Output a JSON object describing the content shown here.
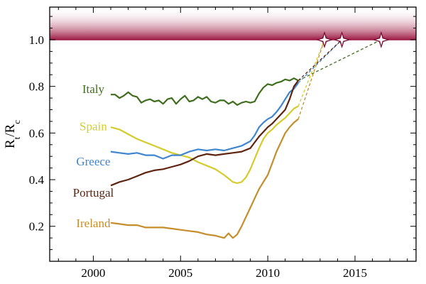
{
  "chart_data": {
    "type": "line",
    "title": "",
    "xlabel": "",
    "ylabel_main": "R",
    "ylabel_sub1": "t",
    "ylabel_sep": "/R",
    "ylabel_sub2": "c",
    "xlim": [
      1997.5,
      2018.5
    ],
    "ylim": [
      0.05,
      1.14
    ],
    "x_ticks": [
      2000,
      2005,
      2010,
      2015
    ],
    "y_ticks": [
      0.2,
      0.4,
      0.6,
      0.8,
      1.0
    ],
    "x_tick_labels": [
      "2000",
      "2005",
      "2010",
      "2015"
    ],
    "y_tick_labels": [
      "0.2",
      "0.4",
      "0.6",
      "0.8",
      "1.0"
    ],
    "grid": false,
    "threshold": {
      "value": 1.0,
      "color": "#9e1b45"
    },
    "series": [
      {
        "name": "Italy",
        "color": "#3f6e1e",
        "x": [
          2001.0,
          2001.25,
          2001.5,
          2001.75,
          2002.0,
          2002.25,
          2002.5,
          2002.75,
          2003.0,
          2003.25,
          2003.5,
          2003.75,
          2004.0,
          2004.25,
          2004.5,
          2004.75,
          2005.0,
          2005.25,
          2005.5,
          2005.75,
          2006.0,
          2006.25,
          2006.5,
          2006.75,
          2007.0,
          2007.25,
          2007.5,
          2007.75,
          2008.0,
          2008.25,
          2008.5,
          2008.75,
          2009.0,
          2009.25,
          2009.5,
          2009.75,
          2010.0,
          2010.25,
          2010.5,
          2010.75,
          2011.0,
          2011.25,
          2011.5,
          2011.75
        ],
        "values": [
          0.765,
          0.765,
          0.75,
          0.76,
          0.775,
          0.76,
          0.755,
          0.73,
          0.74,
          0.745,
          0.735,
          0.74,
          0.725,
          0.745,
          0.75,
          0.725,
          0.745,
          0.76,
          0.735,
          0.74,
          0.755,
          0.745,
          0.755,
          0.735,
          0.73,
          0.74,
          0.74,
          0.725,
          0.735,
          0.72,
          0.73,
          0.735,
          0.73,
          0.735,
          0.77,
          0.795,
          0.81,
          0.805,
          0.815,
          0.82,
          0.83,
          0.825,
          0.835,
          0.825
        ],
        "projection": {
          "x": [
            2011.75,
            2016.5
          ],
          "values": [
            0.825,
            1.0
          ]
        },
        "target_marker": {
          "x": 2016.5,
          "value": 1.0
        }
      },
      {
        "name": "Spain",
        "color": "#d4cc2a",
        "x": [
          2001.0,
          2001.5,
          2002.0,
          2002.5,
          2003.0,
          2003.5,
          2004.0,
          2004.5,
          2005.0,
          2005.5,
          2006.0,
          2006.5,
          2007.0,
          2007.5,
          2008.0,
          2008.25,
          2008.5,
          2008.75,
          2009.0,
          2009.25,
          2009.5,
          2009.75,
          2010.0,
          2010.25,
          2010.5,
          2010.75,
          2011.0,
          2011.25,
          2011.5,
          2011.75
        ],
        "values": [
          0.625,
          0.615,
          0.595,
          0.575,
          0.56,
          0.545,
          0.53,
          0.515,
          0.505,
          0.495,
          0.475,
          0.46,
          0.445,
          0.42,
          0.39,
          0.385,
          0.39,
          0.41,
          0.445,
          0.49,
          0.535,
          0.575,
          0.6,
          0.615,
          0.635,
          0.65,
          0.665,
          0.685,
          0.705,
          0.715
        ],
        "projection": {
          "x": [
            2011.75,
            2013.25
          ],
          "values": [
            0.715,
            1.0
          ]
        },
        "target_marker": {
          "x": 2013.25,
          "value": 1.0
        }
      },
      {
        "name": "Greece",
        "color": "#3f86cf",
        "x": [
          2001.0,
          2001.5,
          2002.0,
          2002.5,
          2003.0,
          2003.5,
          2004.0,
          2004.5,
          2005.0,
          2005.5,
          2006.0,
          2006.5,
          2007.0,
          2007.5,
          2008.0,
          2008.5,
          2009.0,
          2009.25,
          2009.5,
          2009.75,
          2010.0,
          2010.25,
          2010.5,
          2010.75,
          2011.0,
          2011.25,
          2011.5,
          2011.75
        ],
        "values": [
          0.52,
          0.515,
          0.51,
          0.515,
          0.505,
          0.505,
          0.49,
          0.505,
          0.505,
          0.52,
          0.53,
          0.525,
          0.53,
          0.525,
          0.535,
          0.545,
          0.565,
          0.59,
          0.625,
          0.645,
          0.66,
          0.67,
          0.69,
          0.715,
          0.745,
          0.775,
          0.79,
          0.815
        ],
        "projection": {
          "x": [
            2011.75,
            2014.25
          ],
          "values": [
            0.815,
            1.0
          ]
        }
      },
      {
        "name": "Portugal",
        "color": "#5e2410",
        "x": [
          2001.0,
          2001.5,
          2002.0,
          2002.5,
          2003.0,
          2003.5,
          2004.0,
          2004.5,
          2005.0,
          2005.5,
          2006.0,
          2006.5,
          2007.0,
          2007.5,
          2008.0,
          2008.5,
          2009.0,
          2009.25,
          2009.5,
          2009.75,
          2010.0,
          2010.25,
          2010.5,
          2010.75,
          2011.0,
          2011.25,
          2011.5,
          2011.75
        ],
        "values": [
          0.375,
          0.39,
          0.4,
          0.415,
          0.43,
          0.44,
          0.445,
          0.455,
          0.465,
          0.48,
          0.5,
          0.51,
          0.505,
          0.51,
          0.515,
          0.52,
          0.535,
          0.56,
          0.585,
          0.605,
          0.625,
          0.64,
          0.66,
          0.68,
          0.7,
          0.745,
          0.8,
          0.825
        ],
        "projection": {
          "x": [
            2011.75,
            2014.25
          ],
          "values": [
            0.825,
            1.0
          ]
        },
        "target_marker": {
          "x": 2014.25,
          "value": 1.0
        }
      },
      {
        "name": "Ireland",
        "color": "#c68d2c",
        "x": [
          2001.0,
          2001.5,
          2002.0,
          2002.5,
          2003.0,
          2003.5,
          2004.0,
          2004.5,
          2005.0,
          2005.5,
          2006.0,
          2006.5,
          2007.0,
          2007.5,
          2007.75,
          2008.0,
          2008.25,
          2008.5,
          2008.75,
          2009.0,
          2009.25,
          2009.5,
          2009.75,
          2010.0,
          2010.25,
          2010.5,
          2010.75,
          2011.0,
          2011.25,
          2011.5,
          2011.75
        ],
        "values": [
          0.215,
          0.21,
          0.205,
          0.205,
          0.195,
          0.195,
          0.195,
          0.19,
          0.185,
          0.18,
          0.175,
          0.165,
          0.16,
          0.15,
          0.17,
          0.15,
          0.165,
          0.2,
          0.24,
          0.28,
          0.32,
          0.36,
          0.39,
          0.42,
          0.47,
          0.52,
          0.56,
          0.6,
          0.625,
          0.645,
          0.66
        ],
        "projection": {
          "x": [
            2011.75,
            2013.25
          ],
          "values": [
            0.66,
            1.0
          ]
        }
      }
    ]
  },
  "labels": [
    {
      "text": "Italy",
      "x": 2000.0,
      "value": 0.79,
      "color": "#3f6e1e"
    },
    {
      "text": "Spain",
      "x": 2000.0,
      "value": 0.63,
      "color": "#d4cc2a"
    },
    {
      "text": "Greece",
      "x": 2000.0,
      "value": 0.48,
      "color": "#3f86cf"
    },
    {
      "text": "Portugal",
      "x": 2000.0,
      "value": 0.345,
      "color": "#5e2410"
    },
    {
      "text": "Ireland",
      "x": 2000.0,
      "value": 0.215,
      "color": "#c68d2c"
    }
  ]
}
